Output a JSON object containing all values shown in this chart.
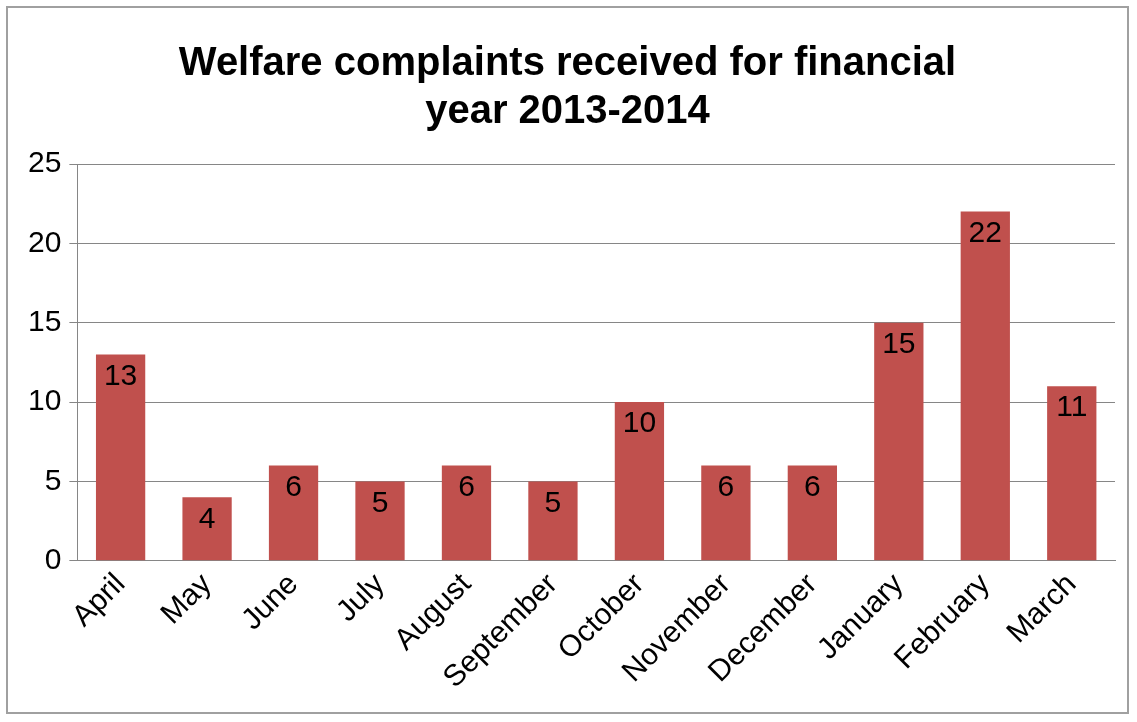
{
  "chart_data": {
    "type": "bar",
    "title": "Welfare complaints received for financial year 2013-2014",
    "categories": [
      "April",
      "May",
      "June",
      "July",
      "August",
      "September",
      "October",
      "November",
      "December",
      "January",
      "February",
      "March"
    ],
    "values": [
      13,
      4,
      6,
      5,
      6,
      5,
      10,
      6,
      6,
      15,
      22,
      11
    ],
    "color": "#c0504d",
    "ylim": [
      0,
      25
    ],
    "yticks": [
      0,
      5,
      10,
      15,
      20,
      25
    ],
    "grid": "y",
    "legend": false,
    "data_labels": true
  }
}
